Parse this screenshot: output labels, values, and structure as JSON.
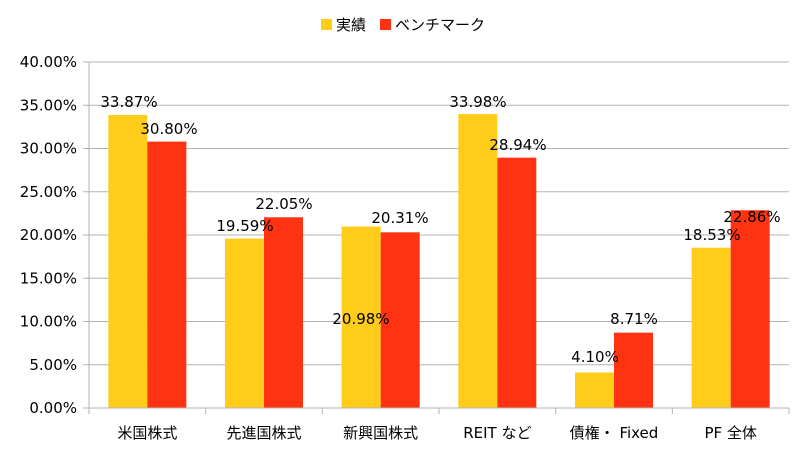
{
  "chart_data": {
    "type": "bar",
    "categories": [
      "米国株式",
      "先進国株式",
      "新興国株式",
      "REIT など",
      "債権・ Fixed",
      "PF 全体"
    ],
    "series": [
      {
        "name": "実績",
        "color": "#FFCC1A",
        "values": [
          33.87,
          19.59,
          20.98,
          33.98,
          4.1,
          18.53
        ],
        "labels": [
          "33.87%",
          "19.59%",
          "20.98%",
          "33.98%",
          "4.10%",
          "18.53%"
        ]
      },
      {
        "name": "ベンチマーク",
        "color": "#FF3311",
        "values": [
          30.8,
          22.05,
          20.31,
          28.94,
          8.71,
          22.86
        ],
        "labels": [
          "30.80%",
          "22.05%",
          "20.31%",
          "28.94%",
          "8.71%",
          "22.86%"
        ]
      }
    ],
    "yticks": [
      "0.00%",
      "5.00%",
      "10.00%",
      "15.00%",
      "20.00%",
      "25.00%",
      "30.00%",
      "35.00%",
      "40.00%"
    ],
    "ylim": [
      0,
      40
    ],
    "grid": true,
    "legend_position": "top"
  }
}
